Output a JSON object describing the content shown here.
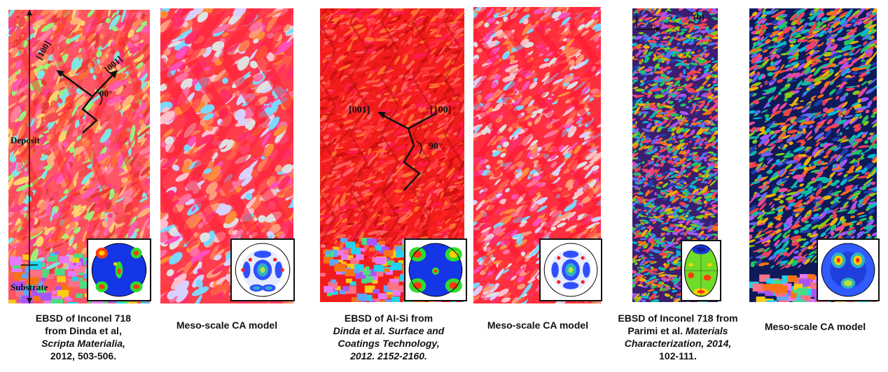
{
  "panels": [
    {
      "caption": {
        "line1": "EBSD of Inconel 718",
        "line2": "from Dinda et al,",
        "line3": "Scripta Materialia,",
        "line4": "2012, 503-506."
      }
    },
    {
      "caption": {
        "line1": "Meso-scale CA model"
      }
    },
    {
      "caption": {
        "line1": "EBSD of Al-Si from",
        "line2": "Dinda et al. Surface and",
        "line3": "Coatings Technology,",
        "line4": "2012. 2152-2160."
      }
    },
    {
      "caption": {
        "line1": "Meso-scale CA model"
      }
    },
    {
      "caption": {
        "line1": "EBSD of Inconel 718 from",
        "line2a": "Parimi et al. ",
        "line2b": "Materials",
        "line3": "Characterization, 2014,",
        "line4": "102-111."
      }
    },
    {
      "caption": {
        "line1": "Meso-scale CA model"
      }
    }
  ],
  "annotations": {
    "p1": {
      "dir100": "[100]",
      "dir001": "[001]",
      "angle": "90°",
      "deposit": "Deposit",
      "substrate": "Substrate"
    },
    "p3": {
      "dir001": "[001]",
      "dir100": "[100]",
      "angle": "90°"
    },
    "p5": {
      "label": "(b)"
    }
  },
  "colors": {
    "caption_text": "#111111",
    "pole_figure_blue": "#1436e6",
    "pole_figure_bg_white": "#ffffff"
  }
}
